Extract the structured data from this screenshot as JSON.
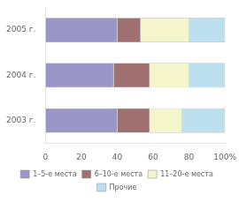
{
  "chart_data": {
    "type": "bar",
    "orientation": "horizontal",
    "stacked": true,
    "categories": [
      "2003 г.",
      "2004 г.",
      "2005 г."
    ],
    "series": [
      {
        "name": "1–5-е места",
        "color": "#9b96c8",
        "values": [
          40,
          38,
          40
        ]
      },
      {
        "name": "6–10-е места",
        "color": "#a07070",
        "values": [
          18,
          20,
          13
        ]
      },
      {
        "name": "11–20-е места",
        "color": "#f5f5cc",
        "values": [
          18,
          22,
          27
        ]
      },
      {
        "name": "Прочие",
        "color": "#bde0ee",
        "values": [
          24,
          20,
          20
        ]
      }
    ],
    "xlim": [
      0,
      100
    ],
    "xticks": [
      0,
      20,
      40,
      60,
      80,
      {
        "value": 100,
        "label": "100%"
      }
    ],
    "grid": false,
    "legend": "bottom"
  }
}
